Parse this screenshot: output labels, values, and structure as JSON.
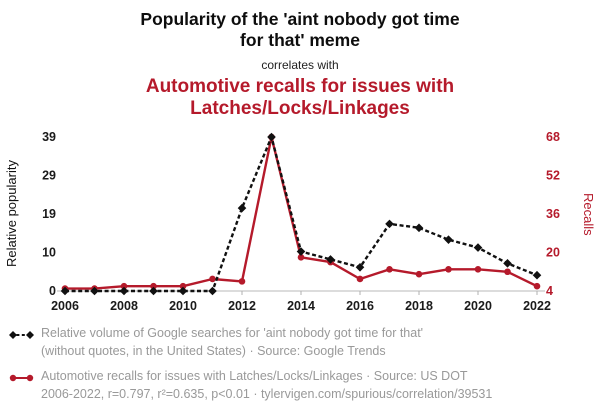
{
  "header": {
    "title": "Popularity of the 'aint nobody got time for that' meme",
    "connector": "correlates with",
    "subtitle": "Automotive recalls for issues with Latches/Locks/Linkages"
  },
  "chart_data": {
    "type": "line",
    "x": [
      2006,
      2007,
      2008,
      2009,
      2010,
      2011,
      2012,
      2013,
      2014,
      2015,
      2016,
      2017,
      2018,
      2019,
      2020,
      2021,
      2022
    ],
    "x_tick_labels": [
      "2006",
      "2008",
      "2010",
      "2012",
      "2014",
      "2016",
      "2018",
      "2020",
      "2022"
    ],
    "ylabel_left": "Relative popularity",
    "ylabel_right": "Recalls",
    "left_ticks": [
      "0",
      "10",
      "19",
      "29",
      "39"
    ],
    "right_ticks": [
      "4",
      "20",
      "36",
      "52",
      "68"
    ],
    "ylim_left": [
      0,
      39
    ],
    "ylim_right": [
      4,
      68
    ],
    "grid": false,
    "legend_position": "bottom",
    "series": [
      {
        "name": "Automotive recalls for issues with Latches/Locks/Linkages",
        "axis": "right",
        "color": "#b51a2b",
        "style": "solid-circle",
        "values": [
          5,
          5,
          6,
          6,
          6,
          9,
          8,
          68,
          18,
          16,
          9,
          13,
          11,
          13,
          13,
          12,
          6
        ]
      },
      {
        "name": "Relative volume of Google searches for 'aint nobody got time for that'",
        "axis": "left",
        "color": "#111111",
        "style": "dashed-diamond",
        "values": [
          0,
          0,
          0,
          0,
          0,
          0,
          21,
          39,
          10,
          8,
          6,
          17,
          16,
          13,
          11,
          7,
          4
        ]
      }
    ]
  },
  "legend": {
    "entries": [
      {
        "icon": "black-dashed-diamond",
        "lines": [
          "Relative volume of Google searches for 'aint nobody got time for that'",
          "(without quotes, in the United States) · Source: Google Trends"
        ]
      },
      {
        "icon": "red-solid-circle",
        "lines": [
          "Automotive recalls for issues with Latches/Locks/Linkages · Source: US DOT",
          "2006-2022, r=0.797, r²=0.635, p<0.01 · tylervigen.com/spurious/correlation/39531"
        ]
      }
    ]
  },
  "colors": {
    "accent_red": "#b51a2b",
    "legend_text": "#999999",
    "axis_text": "#1a1a1a"
  }
}
